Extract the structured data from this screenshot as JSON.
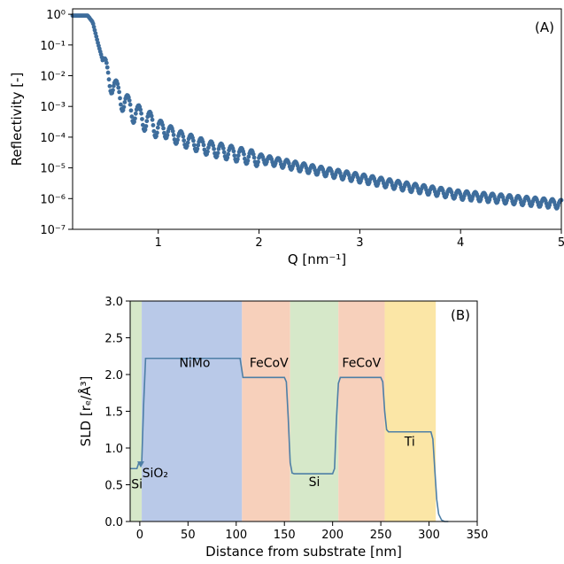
{
  "chart_data": [
    {
      "type": "scatter",
      "panel_label": "(A)",
      "xlabel": "Q [nm⁻¹]",
      "ylabel": "Reflectivity [-]",
      "x_scale": "linear",
      "y_scale": "log",
      "xlim": [
        0.15,
        5.0
      ],
      "ylim": [
        1e-07,
        1.5
      ],
      "x_ticks": [
        1,
        2,
        3,
        4,
        5
      ],
      "x_tick_labels": [
        "1",
        "2",
        "3",
        "4",
        "5"
      ],
      "y_ticks": [
        1e-07,
        1e-06,
        1e-05,
        0.0001,
        0.001,
        0.01,
        0.1,
        1
      ],
      "y_tick_labels": [
        "10⁻⁷",
        "10⁻⁶",
        "10⁻⁵",
        "10⁻⁴",
        "10⁻³",
        "10⁻²",
        "10⁻¹",
        "10⁰"
      ],
      "grid": false,
      "color": "#3e6d9c",
      "envelope": {
        "x": [
          0.15,
          0.3,
          0.35,
          0.4,
          0.45,
          0.5,
          0.6,
          0.7,
          0.8,
          1.0,
          1.2,
          1.5,
          2.0,
          2.5,
          3.0,
          3.5,
          4.0,
          4.5,
          5.0
        ],
        "y": [
          0.9,
          0.9,
          0.55,
          0.12,
          0.03,
          0.012,
          0.003,
          0.0012,
          0.0006,
          0.00025,
          0.00011,
          5e-05,
          2.2e-05,
          1e-05,
          5e-06,
          2.5e-06,
          1.4e-06,
          1e-06,
          7e-07
        ]
      },
      "oscillations": [
        {
          "from": 0.45,
          "to": 1.0,
          "period": 0.11,
          "amplitude_decades": 0.45
        },
        {
          "from": 1.0,
          "to": 2.0,
          "period": 0.1,
          "amplitude_decades": 0.3
        },
        {
          "from": 2.0,
          "to": 5.0,
          "period": 0.085,
          "amplitude_decades": 0.18
        }
      ]
    },
    {
      "type": "line",
      "panel_label": "(B)",
      "xlabel": "Distance from substrate [nm]",
      "ylabel": "SLD [rₑ/Å³]",
      "xlim": [
        -10,
        350
      ],
      "ylim": [
        0.0,
        3.0
      ],
      "x_ticks": [
        0,
        50,
        100,
        150,
        200,
        250,
        300,
        350
      ],
      "x_tick_labels": [
        "0",
        "50",
        "100",
        "150",
        "200",
        "250",
        "300",
        "350"
      ],
      "y_ticks": [
        0.0,
        0.5,
        1.0,
        1.5,
        2.0,
        2.5,
        3.0
      ],
      "y_tick_labels": [
        "0.0",
        "0.5",
        "1.0",
        "1.5",
        "2.0",
        "2.5",
        "3.0"
      ],
      "grid": false,
      "color": "#4e7fa6",
      "profile": {
        "x": [
          -10,
          -3,
          -1,
          0,
          2,
          4,
          6,
          8,
          104,
          106,
          107,
          150,
          152,
          154,
          156,
          158,
          160,
          200,
          202,
          204,
          206,
          208,
          210,
          250,
          252,
          254,
          256,
          258,
          260,
          302,
          304,
          306,
          308,
          310,
          313,
          316,
          320
        ],
        "y": [
          0.72,
          0.72,
          0.8,
          0.8,
          0.8,
          1.6,
          2.22,
          2.22,
          2.22,
          2.05,
          1.96,
          1.96,
          1.9,
          1.4,
          0.8,
          0.66,
          0.65,
          0.65,
          0.72,
          1.4,
          1.88,
          1.96,
          1.96,
          1.96,
          1.9,
          1.5,
          1.25,
          1.22,
          1.22,
          1.22,
          1.12,
          0.7,
          0.3,
          0.1,
          0.02,
          0.0,
          0.0
        ]
      },
      "layers": [
        {
          "name": "Si",
          "from": -10,
          "to": 2,
          "color": "#d6e8c9"
        },
        {
          "name": "NiMo",
          "from": 2,
          "to": 106,
          "color": "#b9c9e8"
        },
        {
          "name": "FeCoV",
          "from": 106,
          "to": 156,
          "color": "#f7d0bb"
        },
        {
          "name": "Si",
          "from": 156,
          "to": 206,
          "color": "#d6e8c9"
        },
        {
          "name": "FeCoV",
          "from": 206,
          "to": 254,
          "color": "#f7d0bb"
        },
        {
          "name": "Ti",
          "from": 254,
          "to": 307,
          "color": "#fbe6a6"
        }
      ],
      "annotations": [
        {
          "text": "NiMo",
          "x": 57,
          "y": 2.1
        },
        {
          "text": "FeCoV",
          "x": 134,
          "y": 2.1
        },
        {
          "text": "FeCoV",
          "x": 230,
          "y": 2.1
        },
        {
          "text": "Si",
          "x": 181,
          "y": 0.48
        },
        {
          "text": "Ti",
          "x": 280,
          "y": 1.03
        },
        {
          "text": "Si",
          "x": -3,
          "y": 0.45
        },
        {
          "text": "SiO₂",
          "x": 16,
          "y": 0.6
        }
      ]
    }
  ]
}
